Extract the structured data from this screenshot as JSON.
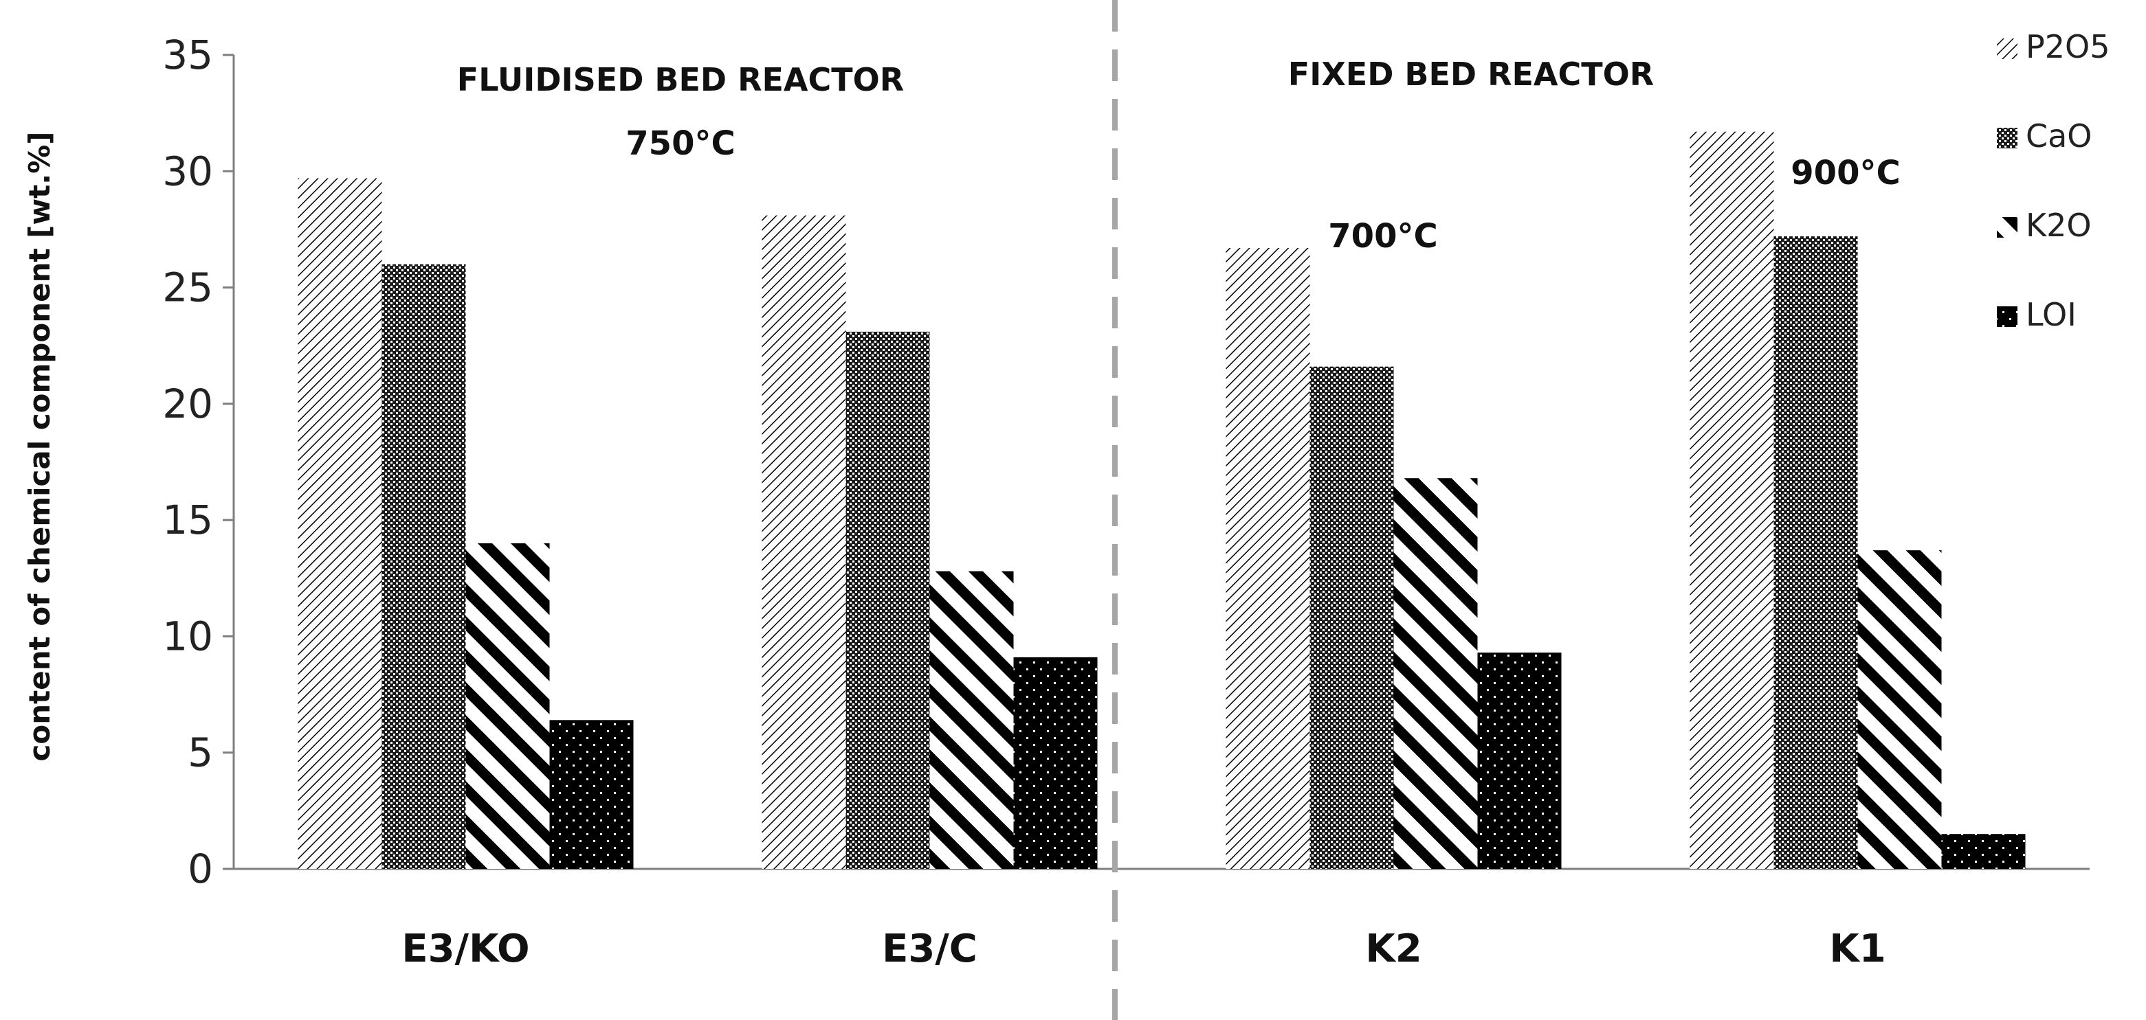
{
  "chart_data": {
    "type": "bar",
    "categories": [
      "E3/KO",
      "E3/C",
      "K2",
      "K1"
    ],
    "series": [
      {
        "name": "P2O5",
        "values": [
          29.7,
          28.1,
          26.7,
          31.7
        ],
        "pattern": "fine-diagonal"
      },
      {
        "name": "CaO",
        "values": [
          26.0,
          23.1,
          21.6,
          27.2
        ],
        "pattern": "dense-dots"
      },
      {
        "name": "K2O",
        "values": [
          14.0,
          12.8,
          16.8,
          13.7
        ],
        "pattern": "wide-diagonal"
      },
      {
        "name": "LOI",
        "values": [
          6.4,
          9.1,
          9.3,
          1.5
        ],
        "pattern": "black-dots"
      }
    ],
    "ylabel": "content of chemical component [wt.%]",
    "ylim": [
      0,
      35
    ],
    "yticks": [
      "0",
      "5",
      "10",
      "15",
      "20",
      "25",
      "30",
      "35"
    ],
    "grid": false,
    "legend_position": "right",
    "annotations": {
      "fluidised": "FLUIDISED BED REACTOR",
      "fixed": "FIXED BED REACTOR",
      "temp_750": "750°C",
      "temp_700": "700°C",
      "temp_900": "900°C"
    },
    "divider": "dashed vertical line between E3/C and K2",
    "colors": {
      "bar_black": "#000000",
      "bar_white": "#ffffff",
      "axis": "#7f7f7f",
      "divider": "#a6a6a6"
    }
  }
}
